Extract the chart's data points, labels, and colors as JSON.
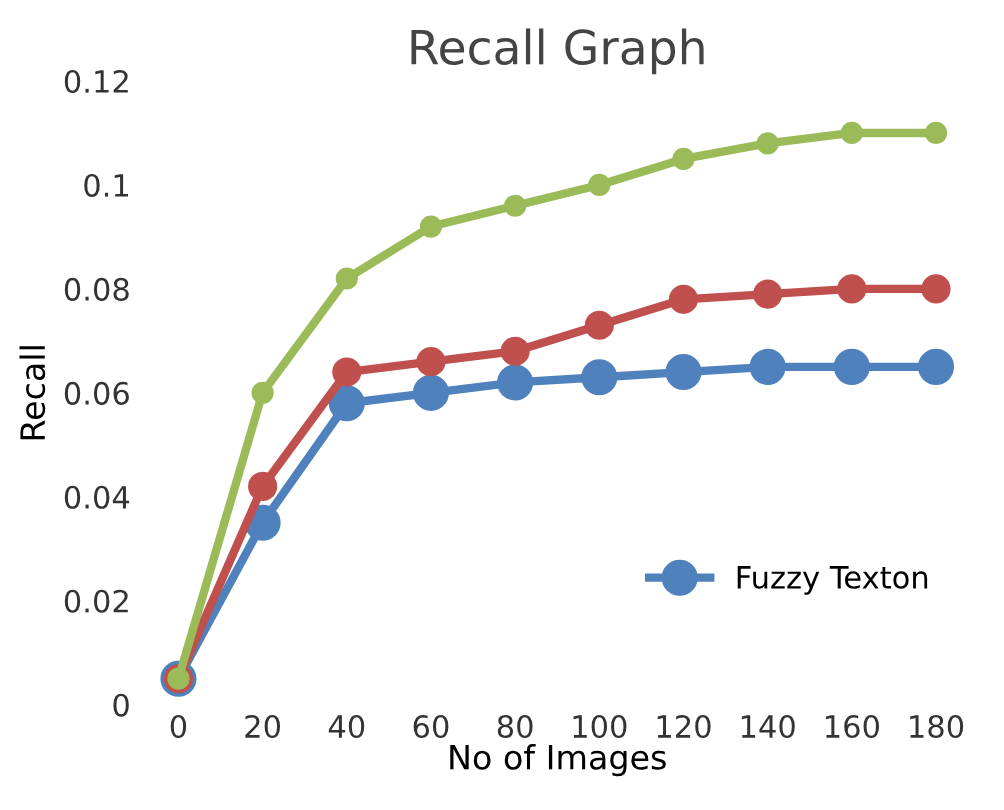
{
  "chart_data": {
    "type": "line",
    "title": "Recall Graph",
    "xlabel": "No of Images",
    "ylabel": "Recall",
    "categories": [
      "0",
      "20",
      "40",
      "60",
      "80",
      "100",
      "120",
      "140",
      "160",
      "180"
    ],
    "series": [
      {
        "name": "Fuzzy Texton",
        "color": "#4f81bd",
        "values": [
          0.005,
          0.035,
          0.058,
          0.06,
          0.062,
          0.063,
          0.064,
          0.065,
          0.065,
          0.065
        ]
      },
      {
        "color": "#c0504d",
        "values": [
          0.005,
          0.042,
          0.064,
          0.066,
          0.068,
          0.073,
          0.078,
          0.079,
          0.08,
          0.08
        ]
      },
      {
        "color": "#9bbb59",
        "values": [
          0.005,
          0.06,
          0.082,
          0.092,
          0.096,
          0.1,
          0.105,
          0.108,
          0.11,
          0.11
        ]
      }
    ],
    "ylim": [
      0,
      0.12
    ],
    "yticks": [
      0,
      0.02,
      0.04,
      0.06,
      0.08,
      0.1,
      0.12
    ],
    "grid": false,
    "legend": "bottom right",
    "marker": "circle",
    "line_style": "solid"
  }
}
